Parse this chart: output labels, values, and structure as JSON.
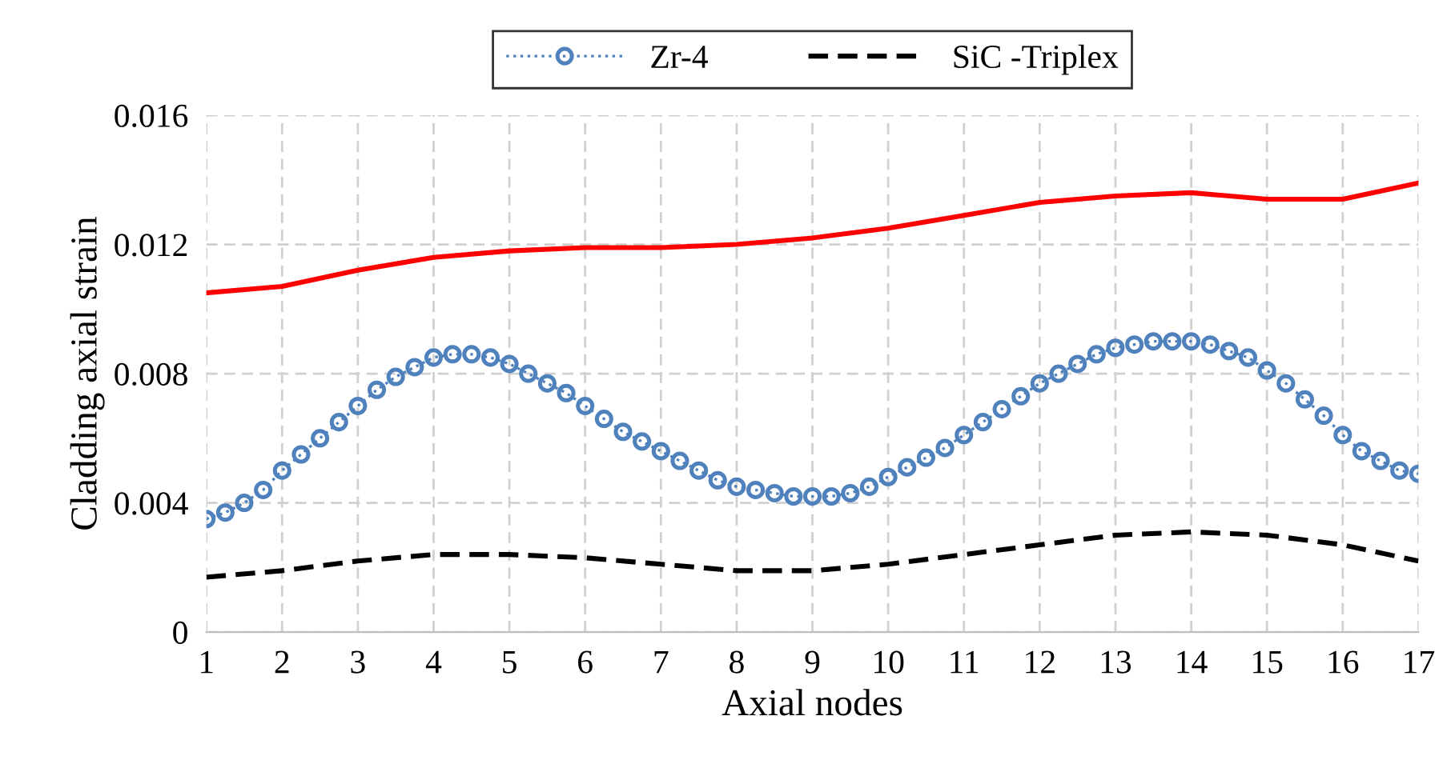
{
  "chart_data": {
    "type": "line",
    "xlabel": "Axial nodes",
    "ylabel": "Cladding axial strain",
    "xlim": [
      1,
      17
    ],
    "xticks": [
      1,
      2,
      3,
      4,
      5,
      6,
      7,
      8,
      9,
      10,
      11,
      12,
      13,
      14,
      15,
      16,
      17
    ],
    "ylim": [
      0,
      0.016
    ],
    "yticks": [
      0,
      0.004,
      0.008,
      0.012,
      0.016
    ],
    "grid": true,
    "legend": "top",
    "series": [
      {
        "name": "Zr-4",
        "color": "#4f81bd",
        "marker": "circle",
        "line_style": "dotted",
        "x": [
          1,
          1.25,
          1.5,
          1.75,
          2,
          2.25,
          2.5,
          2.75,
          3,
          3.25,
          3.5,
          3.75,
          4,
          4.25,
          4.5,
          4.75,
          5,
          5.25,
          5.5,
          5.75,
          6,
          6.25,
          6.5,
          6.75,
          7,
          7.25,
          7.5,
          7.75,
          8,
          8.25,
          8.5,
          8.75,
          9,
          9.25,
          9.5,
          9.75,
          10,
          10.25,
          10.5,
          10.75,
          11,
          11.25,
          11.5,
          11.75,
          12,
          12.25,
          12.5,
          12.75,
          13,
          13.25,
          13.5,
          13.75,
          14,
          14.25,
          14.5,
          14.75,
          15,
          15.25,
          15.5,
          15.75,
          16,
          16.25,
          16.5,
          16.75,
          17
        ],
        "values": [
          0.0035,
          0.0037,
          0.004,
          0.0044,
          0.005,
          0.0055,
          0.006,
          0.0065,
          0.007,
          0.0075,
          0.0079,
          0.0082,
          0.0085,
          0.0086,
          0.0086,
          0.0085,
          0.0083,
          0.008,
          0.0077,
          0.0074,
          0.007,
          0.0066,
          0.0062,
          0.0059,
          0.0056,
          0.0053,
          0.005,
          0.0047,
          0.0045,
          0.0044,
          0.0043,
          0.0042,
          0.0042,
          0.0042,
          0.0043,
          0.0045,
          0.0048,
          0.0051,
          0.0054,
          0.0057,
          0.0061,
          0.0065,
          0.0069,
          0.0073,
          0.0077,
          0.008,
          0.0083,
          0.0086,
          0.0088,
          0.0089,
          0.009,
          0.009,
          0.009,
          0.0089,
          0.0087,
          0.0085,
          0.0081,
          0.0077,
          0.0072,
          0.0067,
          0.0061,
          0.0056,
          0.0053,
          0.005,
          0.0049
        ]
      },
      {
        "color": "#ff0000",
        "marker": "none",
        "line_style": "solid",
        "x": [
          1,
          2,
          3,
          4,
          5,
          6,
          7,
          8,
          9,
          10,
          11,
          12,
          13,
          14,
          15,
          16,
          17
        ],
        "values": [
          0.0105,
          0.0107,
          0.0112,
          0.0116,
          0.0118,
          0.0119,
          0.0119,
          0.012,
          0.0122,
          0.0125,
          0.0129,
          0.0133,
          0.0135,
          0.0136,
          0.0134,
          0.0134,
          0.0139
        ]
      },
      {
        "name": "SiC -Triplex",
        "color": "#000000",
        "marker": "none",
        "line_style": "dashed",
        "x": [
          1,
          2,
          3,
          4,
          5,
          6,
          7,
          8,
          9,
          10,
          11,
          12,
          13,
          14,
          15,
          16,
          17
        ],
        "values": [
          0.0017,
          0.0019,
          0.0022,
          0.0024,
          0.0024,
          0.0023,
          0.0021,
          0.0019,
          0.0019,
          0.0021,
          0.0024,
          0.0027,
          0.003,
          0.0031,
          0.003,
          0.0027,
          0.0022
        ]
      }
    ]
  }
}
